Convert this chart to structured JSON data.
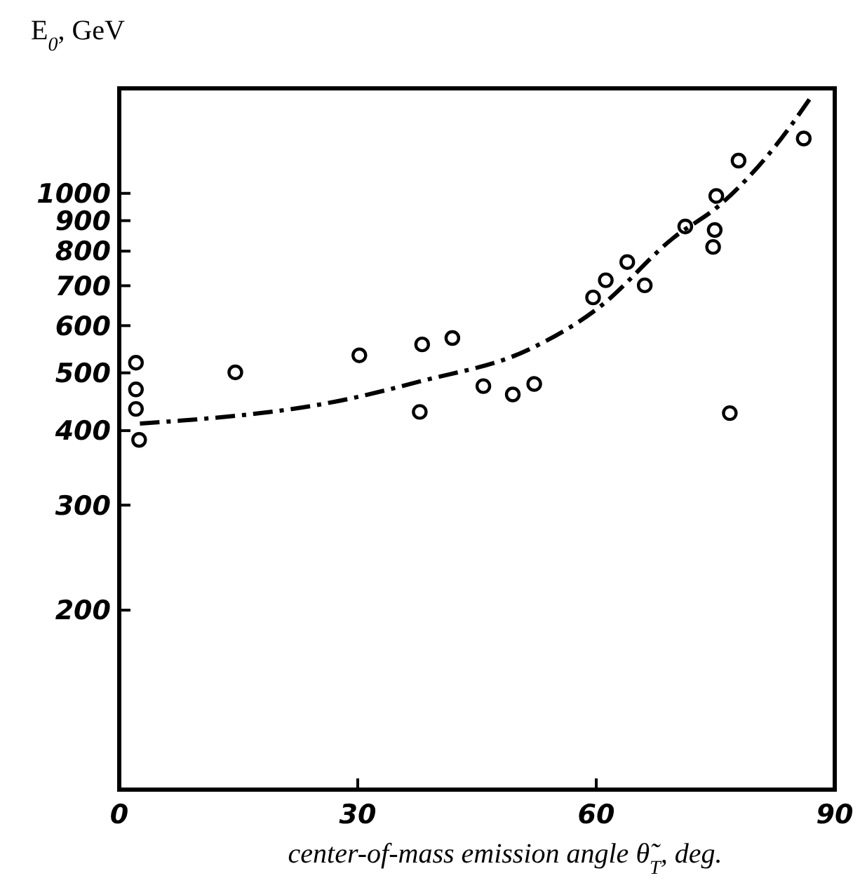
{
  "chart_data": {
    "type": "scatter",
    "xlabel": "center-of-mass emission angle θ̃$_{T}$, deg.",
    "ylabel": "E$_{0}$, GeV",
    "xlim": [
      0,
      90
    ],
    "xticks": [
      0,
      30,
      60,
      90
    ],
    "ylim": [
      100,
      1500
    ],
    "yticks": [
      200,
      300,
      400,
      500,
      600,
      700,
      800,
      900,
      1000
    ],
    "log": "y",
    "series": [
      {
        "color": "#000000",
        "marker": "circle",
        "x": [
          2.1,
          2.1,
          2.1,
          2.5,
          14.6,
          30.2,
          38.1,
          37.8,
          41.9,
          45.8,
          49.5,
          52.2,
          59.6,
          61.2,
          63.9,
          66.1,
          71.2,
          75.1,
          74.9,
          74.7,
          77.9,
          86.1,
          76.8
        ],
        "values": [
          520,
          469,
          435,
          386,
          501,
          535,
          558,
          430,
          572,
          475,
          460,
          479,
          669,
          715,
          767,
          701,
          880,
          990,
          868,
          813,
          1135,
          1236,
          428
        ]
      },
      {
        "type": "line",
        "color": "#000000",
        "line_style": "dashed",
        "x": [
          2.6,
          28.8,
          37.9,
          51.5,
          60.3,
          69.7,
          75.5,
          82.7,
          87.3
        ],
        "values": [
          411,
          452,
          484,
          547,
          643,
          842,
          955,
          1208,
          1469
        ]
      }
    ]
  }
}
